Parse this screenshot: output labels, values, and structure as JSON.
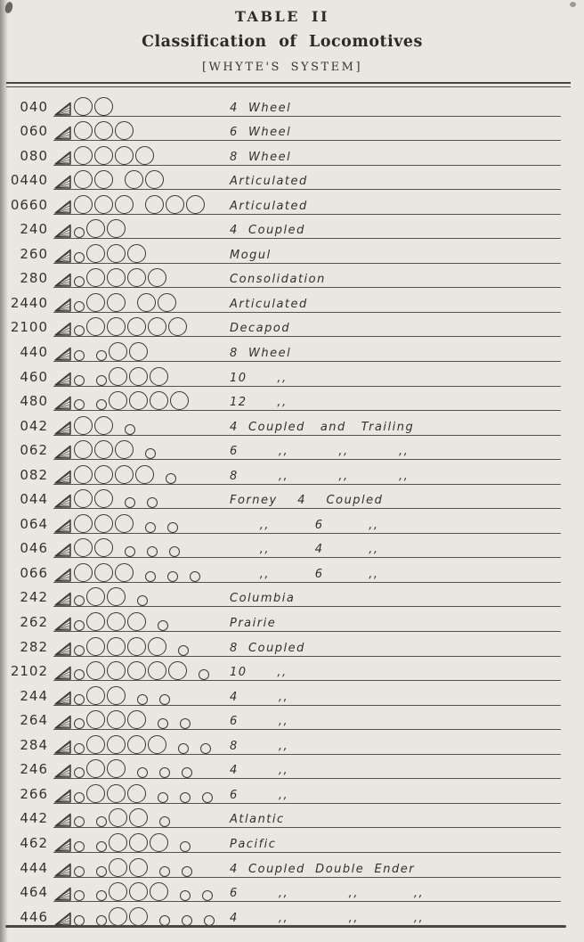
{
  "header": {
    "title": "TABLE II",
    "subtitle": "Classification of Locomotives",
    "system": "[WHYTE'S SYSTEM]"
  },
  "colors": {
    "paper": "#eae7e2",
    "ink": "#2e2b27",
    "line": "#55514b",
    "line-dark": "#4a4641"
  },
  "rows": [
    {
      "code": "040",
      "wheels": "OO",
      "label": "4  Wheel"
    },
    {
      "code": "060",
      "wheels": "OOO",
      "label": "6  Wheel"
    },
    {
      "code": "080",
      "wheels": "OOOO",
      "label": "8  Wheel"
    },
    {
      "code": "0440",
      "wheels": "OO OO",
      "label": "Articulated"
    },
    {
      "code": "0660",
      "wheels": "OOO OOO",
      "label": "Articulated"
    },
    {
      "code": "240",
      "wheels": "oOO",
      "label": "4  Coupled"
    },
    {
      "code": "260",
      "wheels": "oOOO",
      "label": "Mogul"
    },
    {
      "code": "280",
      "wheels": "oOOOO",
      "label": "Consolidation"
    },
    {
      "code": "2440",
      "wheels": "oOO OO",
      "label": "Articulated"
    },
    {
      "code": "2100",
      "wheels": "oOOOOO",
      "label": "Decapod"
    },
    {
      "code": "440",
      "wheels": "o oOO",
      "label": "8  Wheel"
    },
    {
      "code": "460",
      "wheels": "o oOOO",
      "label": "10      ,,"
    },
    {
      "code": "480",
      "wheels": "o oOOOO",
      "label": "12      ,,"
    },
    {
      "code": "042",
      "wheels": "OO o",
      "label": "4  Coupled   and   Trailing"
    },
    {
      "code": "062",
      "wheels": "OOO o",
      "label": "6        ,,          ,,          ,,"
    },
    {
      "code": "082",
      "wheels": "OOOO o",
      "label": "8        ,,          ,,          ,,"
    },
    {
      "code": "044",
      "wheels": "OO o o",
      "label": "Forney    4    Coupled"
    },
    {
      "code": "064",
      "wheels": "OOO o o",
      "label": "      ,,         6         ,,"
    },
    {
      "code": "046",
      "wheels": "OO o o o",
      "label": "      ,,         4         ,,"
    },
    {
      "code": "066",
      "wheels": "OOO o o o",
      "label": "      ,,         6         ,,"
    },
    {
      "code": "242",
      "wheels": "oOO o",
      "label": "Columbia"
    },
    {
      "code": "262",
      "wheels": "oOOO o",
      "label": "Prairie"
    },
    {
      "code": "282",
      "wheels": "oOOOO o",
      "label": "8  Coupled"
    },
    {
      "code": "2102",
      "wheels": "oOOOOO o",
      "label": "10      ,,"
    },
    {
      "code": "244",
      "wheels": "oOO o o",
      "label": "4        ,,"
    },
    {
      "code": "264",
      "wheels": "oOOO o o",
      "label": "6        ,,"
    },
    {
      "code": "284",
      "wheels": "oOOOO o o",
      "label": "8        ,,"
    },
    {
      "code": "246",
      "wheels": "oOO o o o",
      "label": "4        ,,"
    },
    {
      "code": "266",
      "wheels": "oOOO o o o",
      "label": "6        ,,"
    },
    {
      "code": "442",
      "wheels": "o oOO o",
      "label": "Atlantic"
    },
    {
      "code": "462",
      "wheels": "o oOOO o",
      "label": "Pacific"
    },
    {
      "code": "444",
      "wheels": "o oOO o o",
      "label": "4  Coupled  Double  Ender"
    },
    {
      "code": "464",
      "wheels": "o oOOO o o",
      "label": "6        ,,            ,,           ,,"
    },
    {
      "code": "446",
      "wheels": "o oOO o o o",
      "label": "4        ,,            ,,           ,,"
    }
  ]
}
